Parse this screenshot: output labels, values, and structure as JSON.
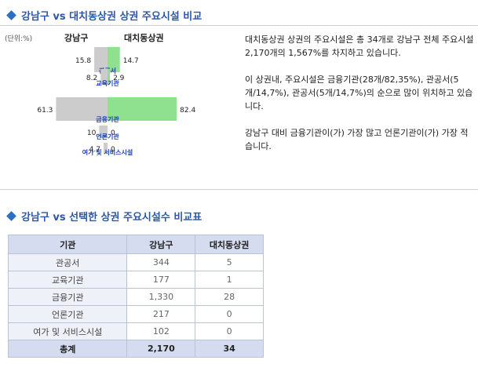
{
  "section1": {
    "title": "강남구 vs 대치동상권 상권 주요시설 비교"
  },
  "section2": {
    "title": "강남구 vs 선택한 상권 주요시설수 비교표"
  },
  "chart_data": {
    "type": "bar",
    "unit_label": "(단위:%)",
    "categories": [
      "관공서",
      "교육기관",
      "금융기관",
      "언론기관",
      "여가 및 서비스시설"
    ],
    "series": [
      {
        "name": "강남구",
        "values": [
          15.8,
          8.2,
          61.3,
          10,
          4.7
        ],
        "color": "#cccccc"
      },
      {
        "name": "대치동상권",
        "values": [
          14.7,
          2.9,
          82.4,
          0,
          0
        ],
        "color": "#8fe08f"
      }
    ],
    "max_value": 100
  },
  "description": {
    "paragraphs": [
      "대치동상권 상권의 주요시설은 총 34개로 강남구 전체 주요시설 2,170개의 1,567%를 차지하고 있습니다.",
      "이 상권내, 주요시설은 금융기관(28개/82,35%), 관공서(5개/14,7%), 관공서(5개/14,7%)의 순으로 많이 위치하고 있습니다.",
      "강남구 대비 금융기관이(가) 가장 많고 언론기관이(가) 가장 적습니다."
    ]
  },
  "table": {
    "headers": [
      "기관",
      "강남구",
      "대치동상권"
    ],
    "rows": [
      [
        "관공서",
        "344",
        "5"
      ],
      [
        "교육기관",
        "177",
        "1"
      ],
      [
        "금융기관",
        "1,330",
        "28"
      ],
      [
        "언론기관",
        "217",
        "0"
      ],
      [
        "여가 및 서비스시설",
        "102",
        "0"
      ]
    ],
    "total": [
      "총계",
      "2,170",
      "34"
    ]
  }
}
